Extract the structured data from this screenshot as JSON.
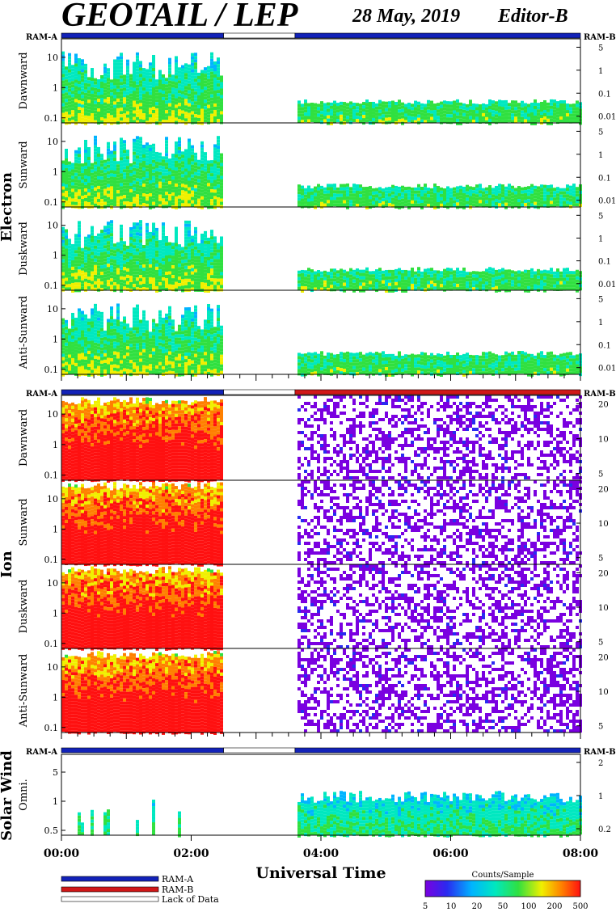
{
  "header": {
    "title": "GEOTAIL / LEP",
    "date": "28 May, 2019",
    "editor": "Editor-B"
  },
  "colors": {
    "ram_a": "#1222b8",
    "ram_b": "#d01818",
    "lack_of_data": "#ffffff",
    "colormap": [
      "#7a00e0",
      "#2a2af0",
      "#00b4ff",
      "#00e8c0",
      "#30e040",
      "#f0f000",
      "#ff8000",
      "#ff1010"
    ]
  },
  "chart_data": {
    "type": "heatmap",
    "x_axis": {
      "label": "Universal Time",
      "ticks": [
        "00:00",
        "02:00",
        "04:00",
        "06:00",
        "08:00"
      ],
      "range_hours": [
        0,
        8
      ]
    },
    "data_gap_hours": [
      2.5,
      3.6
    ],
    "groups": [
      {
        "name": "Electron",
        "ram_bar": {
          "left": "RAM-A",
          "right": "RAM-B",
          "segments": [
            {
              "from": 0,
              "to": 2.5,
              "mode": "RAM-A"
            },
            {
              "from": 2.5,
              "to": 3.6,
              "mode": "Lack of Data"
            },
            {
              "from": 3.6,
              "to": 8,
              "mode": "RAM-A"
            }
          ]
        },
        "panels": [
          {
            "label": "Dawnward",
            "y_left": [
              "10",
              "1",
              "0.1"
            ],
            "y_right": [
              "5",
              "1",
              "0.1",
              "0.01"
            ]
          },
          {
            "label": "Sunward",
            "y_left": [
              "10",
              "1",
              "0.1"
            ],
            "y_right": [
              "5",
              "1",
              "0.1",
              "0.01"
            ]
          },
          {
            "label": "Duskward",
            "y_left": [
              "10",
              "1",
              "0.1"
            ],
            "y_right": [
              "5",
              "1",
              "0.1",
              "0.01"
            ]
          },
          {
            "label": "Anti-Sunward",
            "y_left": [
              "10",
              "1",
              "0.1"
            ],
            "y_right": [
              "5",
              "1",
              "0.1",
              "0.01"
            ]
          }
        ]
      },
      {
        "name": "Ion",
        "ram_bar": {
          "left": "RAM-A",
          "right": "RAM-B",
          "segments": [
            {
              "from": 0,
              "to": 2.5,
              "mode": "RAM-A"
            },
            {
              "from": 2.5,
              "to": 3.6,
              "mode": "Lack of Data"
            },
            {
              "from": 3.6,
              "to": 8,
              "mode": "RAM-B"
            }
          ]
        },
        "panels": [
          {
            "label": "Dawnward",
            "y_left": [
              "10",
              "1",
              "0.1"
            ],
            "y_right": [
              "20",
              "10",
              "5"
            ]
          },
          {
            "label": "Sunward",
            "y_left": [
              "10",
              "1",
              "0.1"
            ],
            "y_right": [
              "20",
              "10",
              "5"
            ]
          },
          {
            "label": "Duskward",
            "y_left": [
              "10",
              "1",
              "0.1"
            ],
            "y_right": [
              "20",
              "10",
              "5"
            ]
          },
          {
            "label": "Anti-Sunward",
            "y_left": [
              "10",
              "1",
              "0.1"
            ],
            "y_right": [
              "20",
              "10",
              "5"
            ]
          }
        ]
      },
      {
        "name": "Solar Wind",
        "ram_bar": {
          "left": "RAM-A",
          "right": "RAM-B",
          "segments": [
            {
              "from": 0,
              "to": 2.5,
              "mode": "RAM-A"
            },
            {
              "from": 2.5,
              "to": 3.6,
              "mode": "Lack of Data"
            },
            {
              "from": 3.6,
              "to": 8,
              "mode": "RAM-A"
            }
          ]
        },
        "panels": [
          {
            "label": "Omni.",
            "y_left": [
              "5",
              "1",
              "0.5"
            ],
            "y_right": [
              "2",
              "1",
              "0.2"
            ]
          }
        ]
      }
    ],
    "legend": {
      "items": [
        "RAM-A",
        "RAM-B",
        "Lack of Data"
      ]
    },
    "colorbar": {
      "label": "Counts/Sample",
      "ticks": [
        "5",
        "10",
        "20",
        "50",
        "100",
        "200",
        "500"
      ]
    }
  }
}
